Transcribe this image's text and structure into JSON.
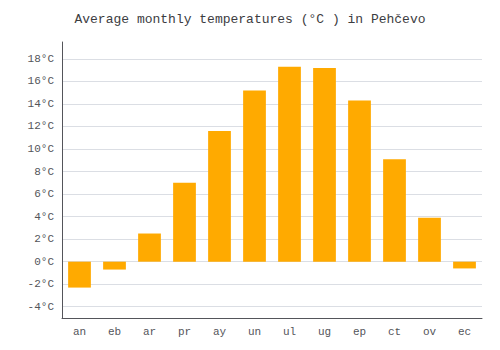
{
  "chart_data": {
    "type": "bar",
    "title": "Average monthly temperatures (°C ) in Pehčevo",
    "categories": [
      "an",
      "eb",
      "ar",
      "pr",
      "ay",
      "un",
      "ul",
      "ug",
      "ep",
      "ct",
      "ov",
      "ec"
    ],
    "values": [
      -2.3,
      -0.7,
      2.5,
      7.0,
      11.6,
      15.2,
      17.3,
      17.2,
      14.3,
      9.1,
      3.9,
      -0.6
    ],
    "color": "#FFAA00",
    "ylim": [
      -5.0,
      19.5
    ],
    "yticks": [
      {
        "value": -4,
        "label": "-4°C"
      },
      {
        "value": -2,
        "label": "-2°C"
      },
      {
        "value": 0,
        "label": "0°C"
      },
      {
        "value": 2,
        "label": "2°C"
      },
      {
        "value": 4,
        "label": "4°C"
      },
      {
        "value": 6,
        "label": "6°C"
      },
      {
        "value": 8,
        "label": "8°C"
      },
      {
        "value": 10,
        "label": "10°C"
      },
      {
        "value": 12,
        "label": "12°C"
      },
      {
        "value": 14,
        "label": "14°C"
      },
      {
        "value": 16,
        "label": "16°C"
      },
      {
        "value": 18,
        "label": "18°C"
      }
    ],
    "grid": true
  }
}
